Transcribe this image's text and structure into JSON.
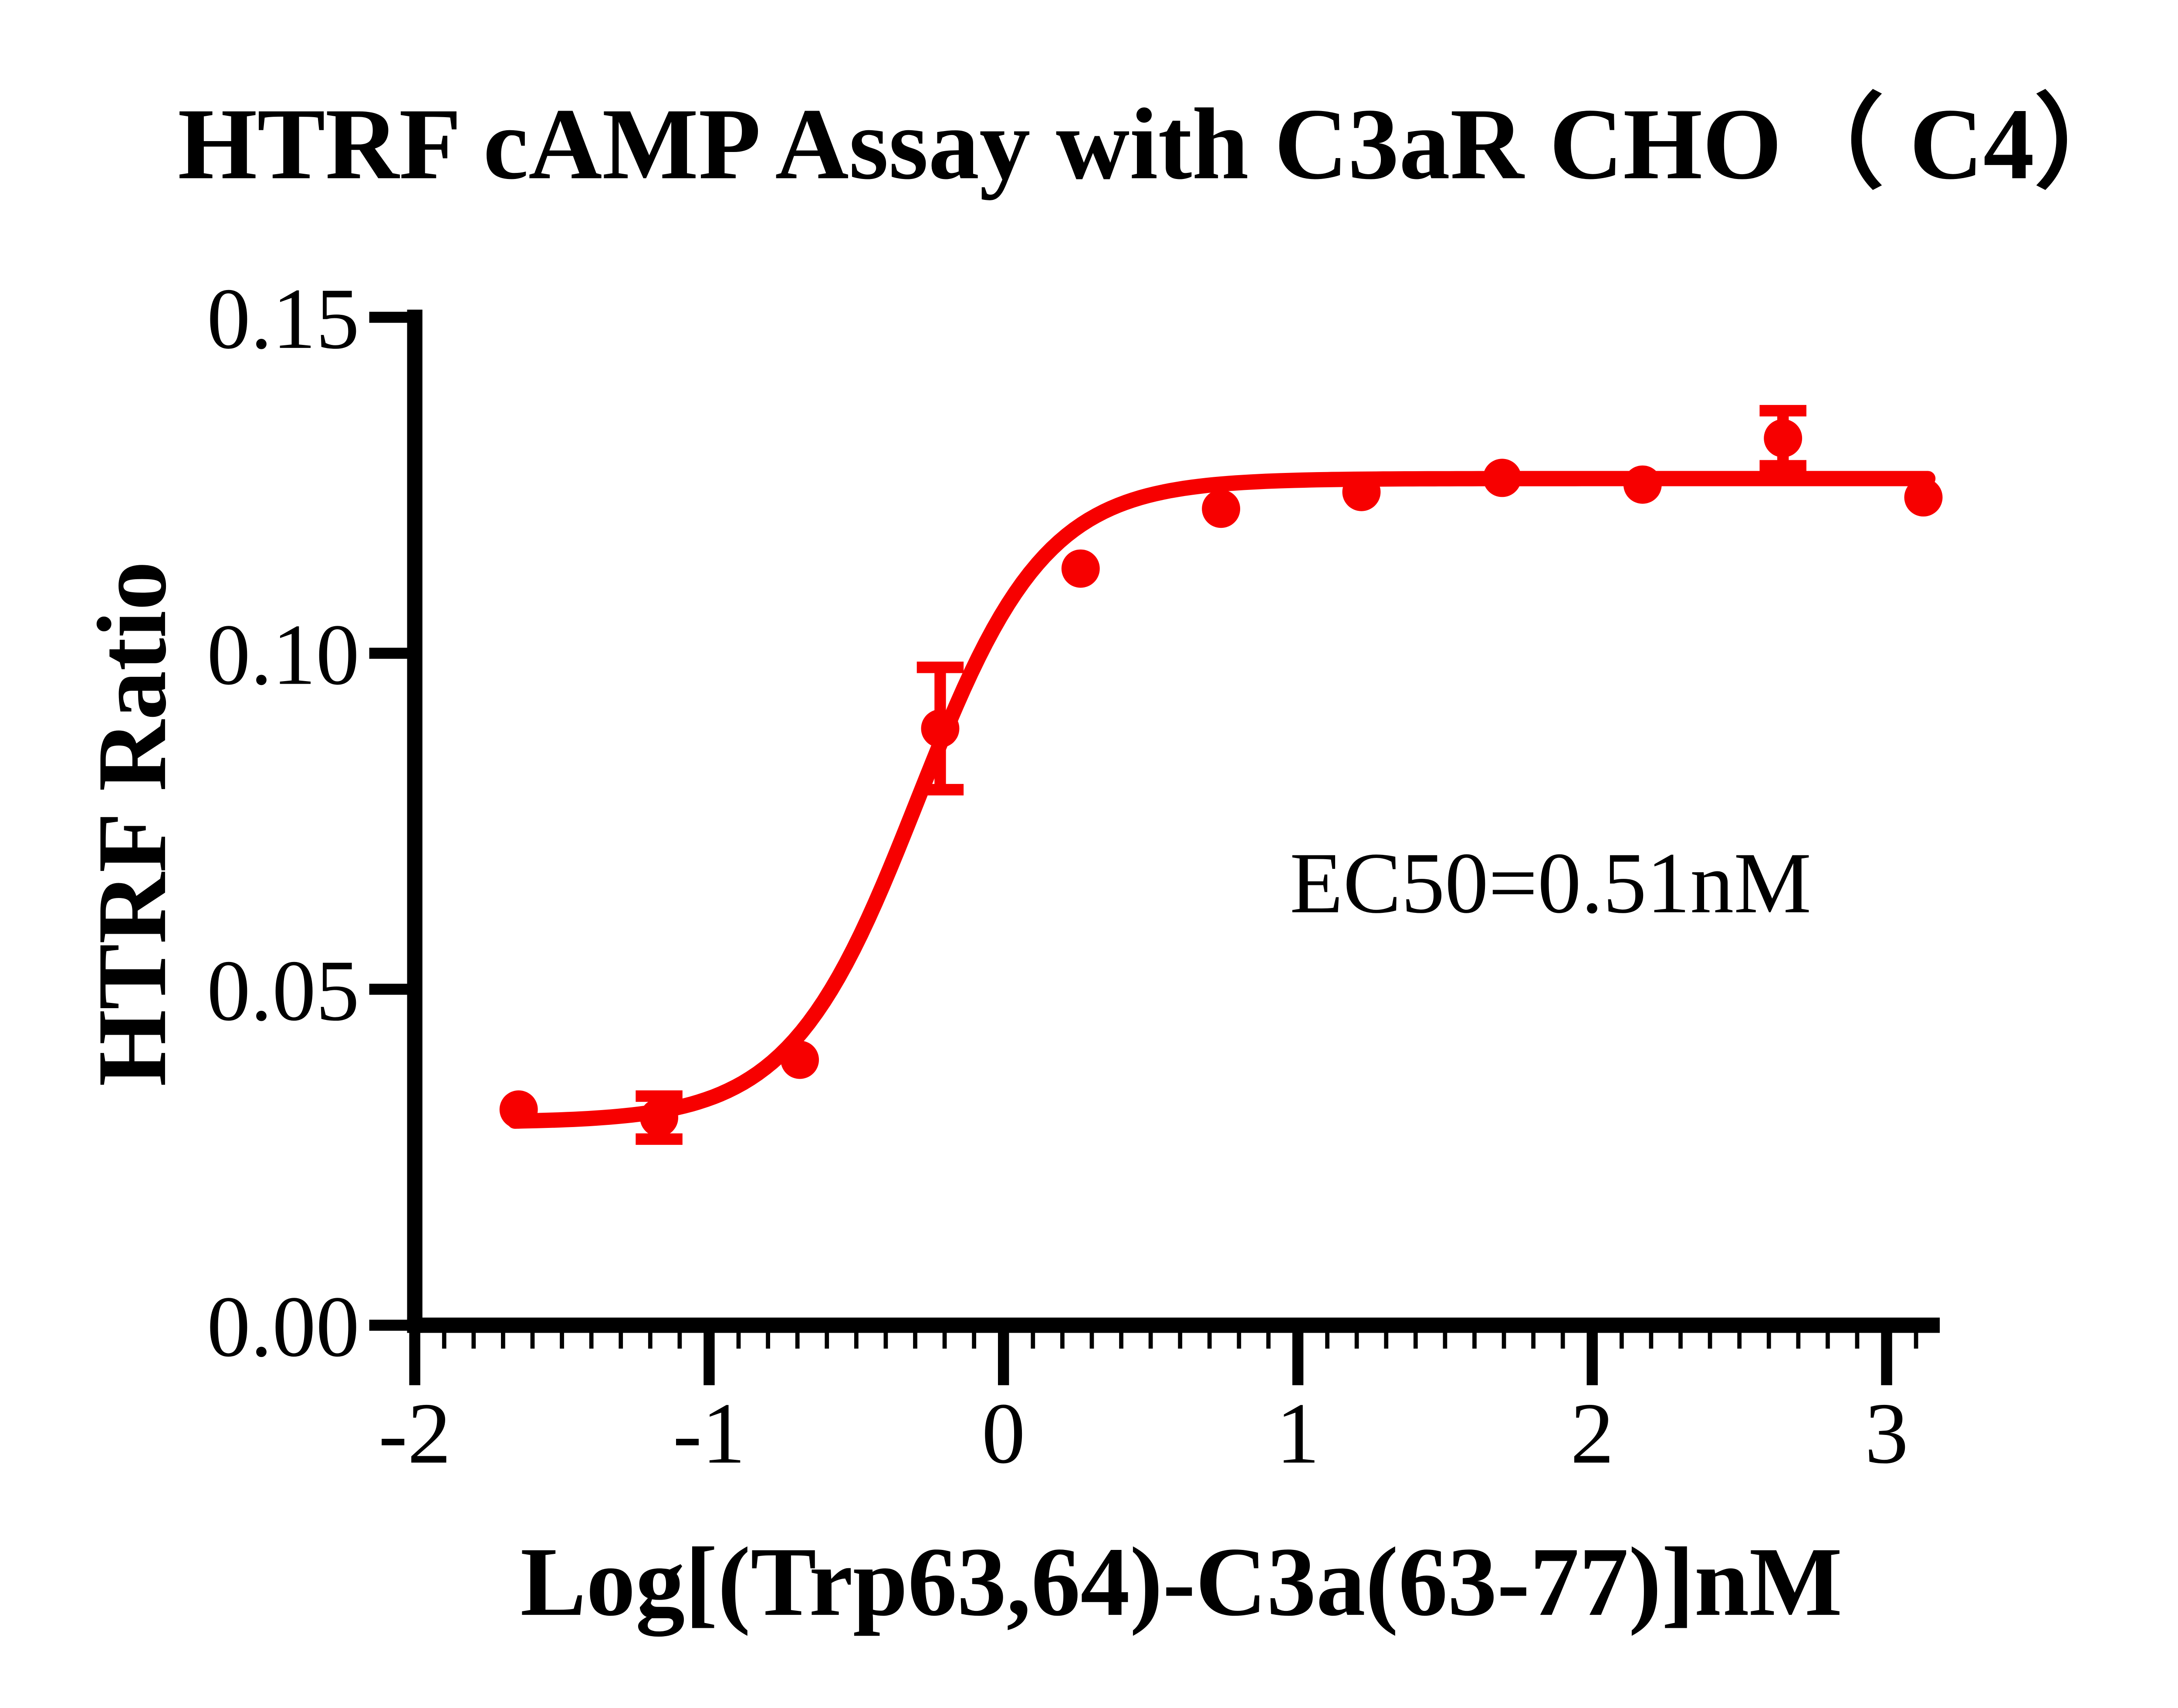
{
  "figure": {
    "background_color": "#FFFFFF",
    "axis_color": "#000000",
    "text_color": "#000000"
  },
  "chart_data": {
    "type": "scatter",
    "title": "HTRF cAMP Assay with C3aR CHO（ C4）",
    "xlabel": "Log[(Trp63,64)-C3a(63-77)]nM",
    "ylabel": "HTRF Ratio",
    "xlim": [
      -2,
      3.18
    ],
    "ylim": [
      0,
      0.15
    ],
    "grid": false,
    "legend_position": "none",
    "x_ticks": [
      {
        "value": -2,
        "label": "-2"
      },
      {
        "value": -1,
        "label": "-1"
      },
      {
        "value": 0,
        "label": "0"
      },
      {
        "value": 1,
        "label": "1"
      },
      {
        "value": 2,
        "label": "2"
      },
      {
        "value": 3,
        "label": "3"
      }
    ],
    "x_minor_tick_step": 0.1,
    "x_minor_tick_max": 3.1,
    "y_ticks": [
      {
        "value": 0.0,
        "label": "0.00"
      },
      {
        "value": 0.05,
        "label": "0.05"
      },
      {
        "value": 0.1,
        "label": "0.10"
      },
      {
        "value": 0.15,
        "label": "0.15"
      }
    ],
    "series": [
      {
        "name": "(Trp63,64)-C3a(63-77)",
        "color": "#F70000",
        "marker": "circle",
        "x": [
          -1.647,
          -1.17,
          -0.692,
          -0.215,
          0.262,
          0.739,
          1.216,
          1.694,
          2.171,
          2.648,
          3.125
        ],
        "y": [
          0.0321,
          0.0309,
          0.0395,
          0.0888,
          0.1126,
          0.1215,
          0.124,
          0.1261,
          0.1251,
          0.132,
          0.1232
        ],
        "y_err": [
          null,
          0.0032,
          null,
          0.0091,
          null,
          null,
          null,
          null,
          null,
          0.0041,
          null
        ]
      }
    ],
    "fit_curve": {
      "model": "4PL-sigmoid",
      "bottom": 0.0302,
      "top": 0.126,
      "logEC50": -0.2924,
      "hill_slope": 2.0,
      "x_start": -1.66,
      "x_end": 3.155,
      "color": "#F70000"
    },
    "annotation": {
      "text": "EC50=0.51nM",
      "x": 0.97,
      "y": 0.0615
    }
  }
}
